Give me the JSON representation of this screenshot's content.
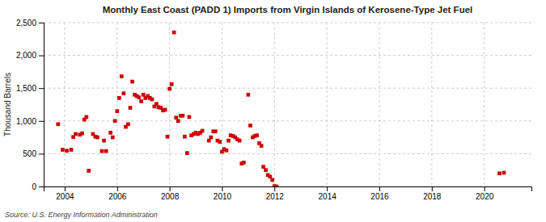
{
  "chart_data": {
    "type": "scatter",
    "title": "Monthly East Coast (PADD 1) Imports from Virgin Islands of Kerosene-Type Jet Fuel",
    "ylabel": "Thousand Barrels",
    "source": "Source: U.S. Energy Information Administration",
    "color": "#CC0000",
    "marker": "square",
    "grid": true,
    "xlim": [
      2003.2,
      2021.8
    ],
    "ylim": [
      0,
      2500
    ],
    "xticks": [
      2004,
      2006,
      2008,
      2010,
      2012,
      2014,
      2016,
      2018,
      2020
    ],
    "yticks": [
      0,
      500,
      {
        "value": 1000,
        "label": "1,000"
      },
      {
        "value": 1500,
        "label": "1,500"
      },
      {
        "value": 2000,
        "label": "2,000"
      },
      {
        "value": 2500,
        "label": "2,500"
      }
    ],
    "x": [
      2003.75,
      2003.92,
      2004.08,
      2004.25,
      2004.33,
      2004.42,
      2004.58,
      2004.67,
      2004.75,
      2004.83,
      2004.92,
      2005.08,
      2005.17,
      2005.25,
      2005.42,
      2005.5,
      2005.58,
      2005.75,
      2005.83,
      2005.92,
      2006.0,
      2006.08,
      2006.17,
      2006.25,
      2006.33,
      2006.42,
      2006.5,
      2006.58,
      2006.67,
      2006.75,
      2006.83,
      2006.92,
      2007.0,
      2007.08,
      2007.17,
      2007.25,
      2007.33,
      2007.42,
      2007.5,
      2007.58,
      2007.67,
      2007.75,
      2007.83,
      2007.92,
      2008.0,
      2008.08,
      2008.17,
      2008.25,
      2008.33,
      2008.42,
      2008.5,
      2008.58,
      2008.67,
      2008.75,
      2008.83,
      2008.92,
      2009.0,
      2009.08,
      2009.17,
      2009.25,
      2009.5,
      2009.58,
      2009.67,
      2009.75,
      2009.83,
      2009.92,
      2010.0,
      2010.08,
      2010.17,
      2010.25,
      2010.33,
      2010.42,
      2010.5,
      2010.58,
      2010.67,
      2010.75,
      2010.83,
      2011.0,
      2011.08,
      2011.17,
      2011.25,
      2011.33,
      2011.42,
      2011.5,
      2011.58,
      2011.67,
      2011.75,
      2011.83,
      2011.92,
      2012.0,
      2012.08,
      2020.58,
      2020.75
    ],
    "values": [
      950,
      560,
      545,
      560,
      755,
      800,
      790,
      810,
      1020,
      1060,
      240,
      800,
      760,
      750,
      540,
      700,
      540,
      820,
      750,
      1000,
      1150,
      1350,
      1680,
      1420,
      910,
      950,
      1200,
      1600,
      1400,
      1380,
      1360,
      1300,
      1400,
      1350,
      1380,
      1350,
      1330,
      1220,
      1260,
      1210,
      1200,
      1160,
      1170,
      760,
      1490,
      1560,
      2350,
      1050,
      1000,
      1080,
      1080,
      760,
      510,
      1060,
      780,
      800,
      820,
      800,
      820,
      850,
      700,
      750,
      840,
      840,
      700,
      680,
      530,
      570,
      550,
      700,
      780,
      770,
      750,
      720,
      700,
      350,
      365,
      1400,
      930,
      750,
      770,
      780,
      660,
      620,
      300,
      250,
      175,
      150,
      100,
      5,
      0,
      200,
      210
    ]
  }
}
